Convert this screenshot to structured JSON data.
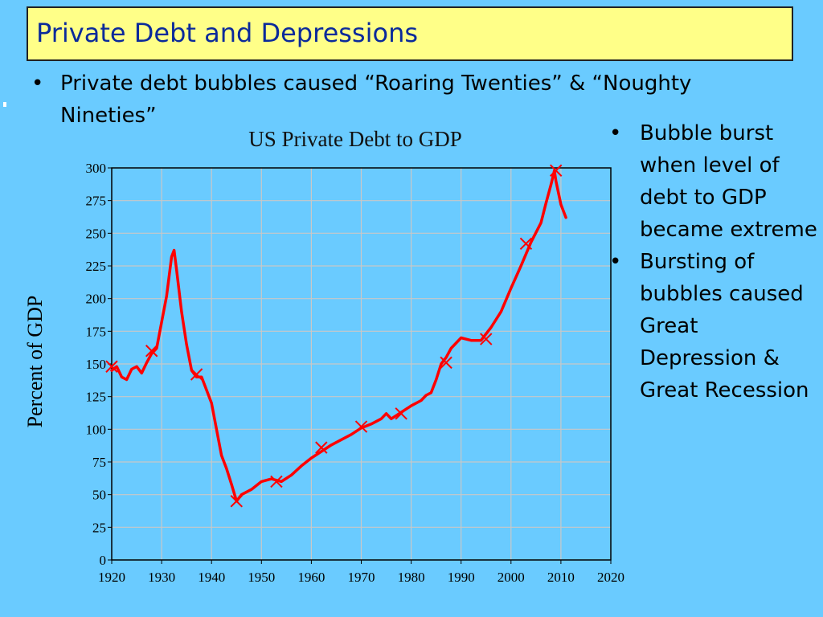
{
  "slide": {
    "title": "Private Debt and Depressions",
    "top_bullet": "Private debt bubbles caused “Roaring Twenties” & “Noughty Nineties”",
    "right_bullets": [
      "Bubble burst when level of debt to GDP became extreme",
      "Bursting of bubbles caused Great Depression & Great Recession"
    ],
    "bullet_glyph": "•"
  },
  "colors": {
    "background": "#6acbff",
    "title_bg": "#ffff88",
    "title_text": "#0b2a9b",
    "line": "#ff0000"
  },
  "chart_data": {
    "type": "line",
    "title": "US Private Debt to GDP",
    "xlabel": "",
    "ylabel": "Percent of GDP",
    "xlim": [
      1920,
      2020
    ],
    "ylim": [
      0,
      300
    ],
    "xticks": [
      1920,
      1930,
      1940,
      1950,
      1960,
      1970,
      1980,
      1990,
      2000,
      2010,
      2020
    ],
    "yticks": [
      0,
      25,
      50,
      75,
      100,
      125,
      150,
      175,
      200,
      225,
      250,
      275,
      300
    ],
    "grid": true,
    "series": [
      {
        "x": [
          1920,
          1921,
          1922,
          1923,
          1924,
          1925,
          1926,
          1927,
          1928,
          1929,
          1930,
          1931,
          1932,
          1932.5,
          1933,
          1934,
          1935,
          1936,
          1937,
          1938,
          1939,
          1940,
          1941,
          1942,
          1943,
          1944,
          1945,
          1946,
          1947,
          1948,
          1950,
          1952,
          1954,
          1956,
          1958,
          1960,
          1962,
          1964,
          1966,
          1968,
          1970,
          1972,
          1974,
          1975,
          1976,
          1978,
          1980,
          1982,
          1983,
          1984,
          1985,
          1986,
          1987,
          1988,
          1990,
          1992,
          1994,
          1996,
          1998,
          2000,
          2002,
          2004,
          2006,
          2007,
          2008,
          2008.7,
          2009,
          2010,
          2011
        ],
        "y": [
          145,
          148,
          140,
          138,
          146,
          148,
          143,
          151,
          158,
          162,
          182,
          202,
          232,
          237,
          222,
          190,
          165,
          145,
          140,
          140,
          130,
          120,
          100,
          80,
          70,
          58,
          45,
          50,
          52,
          54,
          60,
          62,
          60,
          65,
          72,
          78,
          83,
          88,
          92,
          96,
          101,
          104,
          108,
          112,
          108,
          113,
          118,
          122,
          126,
          128,
          138,
          150,
          155,
          162,
          170,
          168,
          168,
          178,
          190,
          208,
          225,
          243,
          258,
          273,
          287,
          298,
          290,
          272,
          262
        ]
      }
    ],
    "markers": {
      "x": [
        1920,
        1928,
        1937,
        1945,
        1953,
        1962,
        1970,
        1978,
        1987,
        1995,
        2003,
        2009
      ],
      "y": [
        148,
        160,
        142,
        45,
        60,
        86,
        102,
        112,
        151,
        169,
        242,
        298
      ]
    }
  }
}
